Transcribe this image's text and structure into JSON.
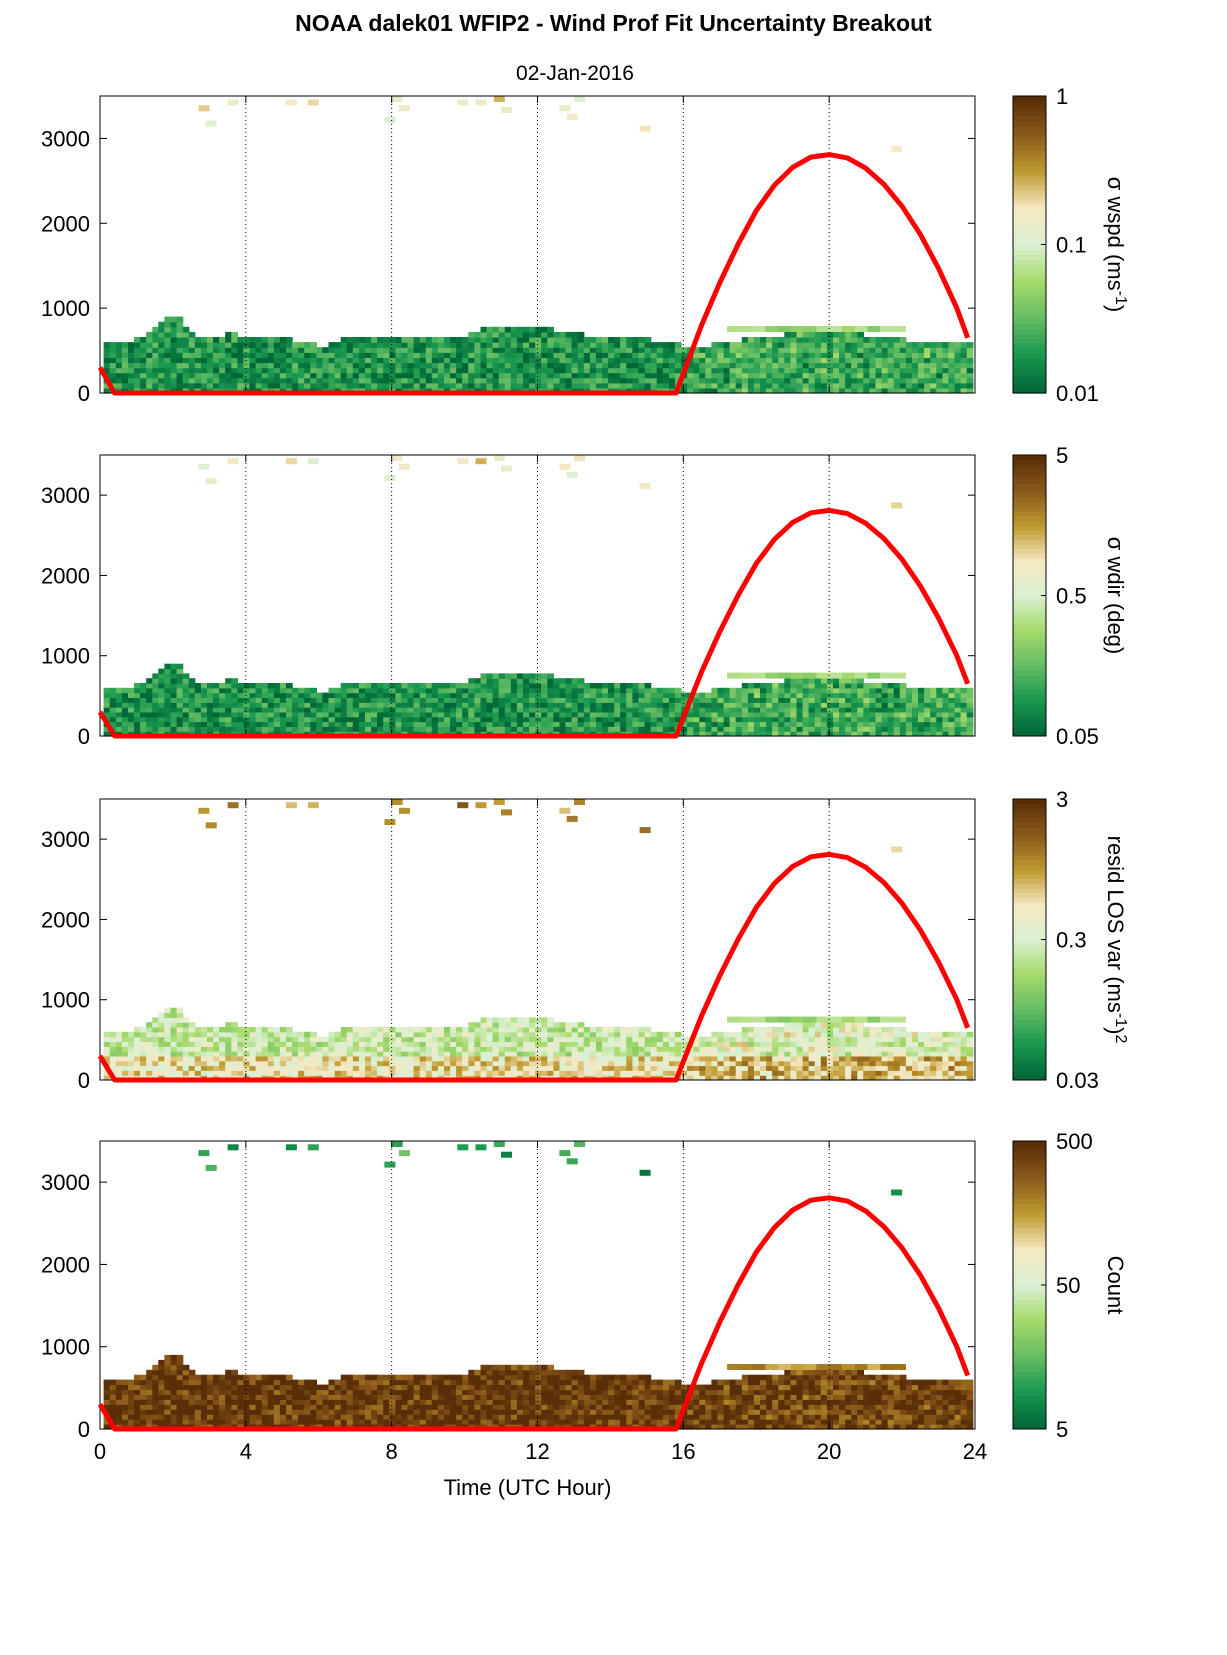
{
  "title": "NOAA dalek01 WFIP2 - Wind Prof Fit Uncertainty Breakout",
  "subtitle": "02-Jan-2016",
  "colors": {
    "cmap": [
      "#006837",
      "#1a9850",
      "#66bd63",
      "#a6d96a",
      "#d9f0d3",
      "#f6e8c3",
      "#bf9b30",
      "#8c5a1a",
      "#5a2f08"
    ],
    "sun_curve": "#ff0000"
  },
  "chart_data": [
    {
      "type": "heatmap",
      "name": "wspd",
      "ylim": [
        0,
        3500
      ],
      "yticks": [
        "0",
        "1000",
        "2000",
        "3000"
      ],
      "xlim": [
        0,
        24
      ],
      "xticks": [],
      "colorbar": {
        "label_pre": "σ wspd (ms",
        "label_sup": "-1",
        "label_post": ")",
        "ticks": [
          "0.01",
          "0.1",
          "1"
        ],
        "scale": "log"
      },
      "mean_level": 0.12,
      "aloft_level": 0.72,
      "cloud_level": 0.3
    },
    {
      "type": "heatmap",
      "name": "wdir",
      "ylim": [
        0,
        3500
      ],
      "yticks": [
        "0",
        "1000",
        "2000",
        "3000"
      ],
      "xlim": [
        0,
        24
      ],
      "xticks": [],
      "colorbar": {
        "label_pre": "σ wdir (deg)",
        "label_sup": "",
        "label_post": "",
        "ticks": [
          "0.05",
          "0.5",
          "5"
        ],
        "scale": "log"
      },
      "mean_level": 0.12,
      "aloft_level": 0.72,
      "cloud_level": 0.3
    },
    {
      "type": "heatmap",
      "name": "resid",
      "ylim": [
        0,
        3500
      ],
      "yticks": [
        "0",
        "1000",
        "2000",
        "3000"
      ],
      "xlim": [
        0,
        24
      ],
      "xticks": [],
      "colorbar": {
        "label_pre": "resid LOS var (ms",
        "label_sup": "-1",
        "label_post": ")",
        "label_sup2": "2",
        "ticks": [
          "0.03",
          "0.3",
          "3"
        ],
        "scale": "log"
      },
      "mean_level": 0.45,
      "aloft_level": 0.9,
      "cloud_level": 0.3
    },
    {
      "type": "heatmap",
      "name": "count",
      "ylim": [
        0,
        3500
      ],
      "yticks": [
        "0",
        "1000",
        "2000",
        "3000"
      ],
      "xlim": [
        0,
        24
      ],
      "xticks": [
        "0",
        "4",
        "8",
        "12",
        "16",
        "20",
        "24"
      ],
      "xlabel": "Time (UTC Hour)",
      "colorbar": {
        "label_pre": "Count",
        "label_sup": "",
        "label_post": "",
        "ticks": [
          "5",
          "50",
          "500"
        ],
        "scale": "log"
      },
      "mean_level": 0.97,
      "aloft_level": 0.28,
      "cloud_level": 0.7
    }
  ],
  "boundary_layer_top": {
    "x": [
      0,
      0.5,
      1,
      1.5,
      2,
      2.5,
      3,
      3.5,
      4,
      4.5,
      5,
      5.5,
      6,
      6.5,
      7,
      7.5,
      8,
      8.5,
      9,
      9.5,
      10,
      10.5,
      11,
      11.5,
      12,
      12.5,
      13,
      13.5,
      14,
      14.5,
      15,
      15.5,
      16,
      16.5,
      17,
      17.5,
      18,
      18.5,
      19,
      19.5,
      20,
      20.5,
      21,
      21.5,
      22,
      22.5,
      23,
      23.5,
      23.8
    ],
    "y": [
      580,
      550,
      620,
      780,
      900,
      640,
      600,
      700,
      620,
      600,
      620,
      580,
      520,
      600,
      620,
      640,
      620,
      620,
      620,
      620,
      640,
      780,
      780,
      780,
      760,
      700,
      680,
      640,
      640,
      620,
      600,
      580,
      520,
      520,
      600,
      600,
      620,
      640,
      680,
      680,
      700,
      700,
      640,
      640,
      600,
      600,
      600,
      600,
      600
    ]
  },
  "sun_elevation_curve": {
    "x": [
      0,
      0.4,
      15.8,
      16.5,
      17,
      17.5,
      18,
      18.5,
      19,
      19.5,
      20,
      20.5,
      21,
      21.5,
      22,
      22.5,
      23,
      23.5,
      23.8
    ],
    "y": [
      300,
      0,
      0,
      800,
      1300,
      1750,
      2150,
      2450,
      2660,
      2780,
      2810,
      2770,
      2650,
      2460,
      2200,
      1870,
      1470,
      1000,
      650
    ]
  },
  "aloft_cells": {
    "x": [
      2.7,
      2.9,
      3.5,
      5.1,
      5.7,
      7.8,
      8.0,
      8.2,
      9.8,
      10.3,
      10.8,
      11.0,
      12.6,
      12.8,
      13.0,
      14.8,
      21.7
    ],
    "y": [
      3350,
      3170,
      3420,
      3420,
      3420,
      3210,
      3460,
      3350,
      3420,
      3420,
      3460,
      3330,
      3350,
      3250,
      3460,
      3110,
      2870
    ]
  }
}
